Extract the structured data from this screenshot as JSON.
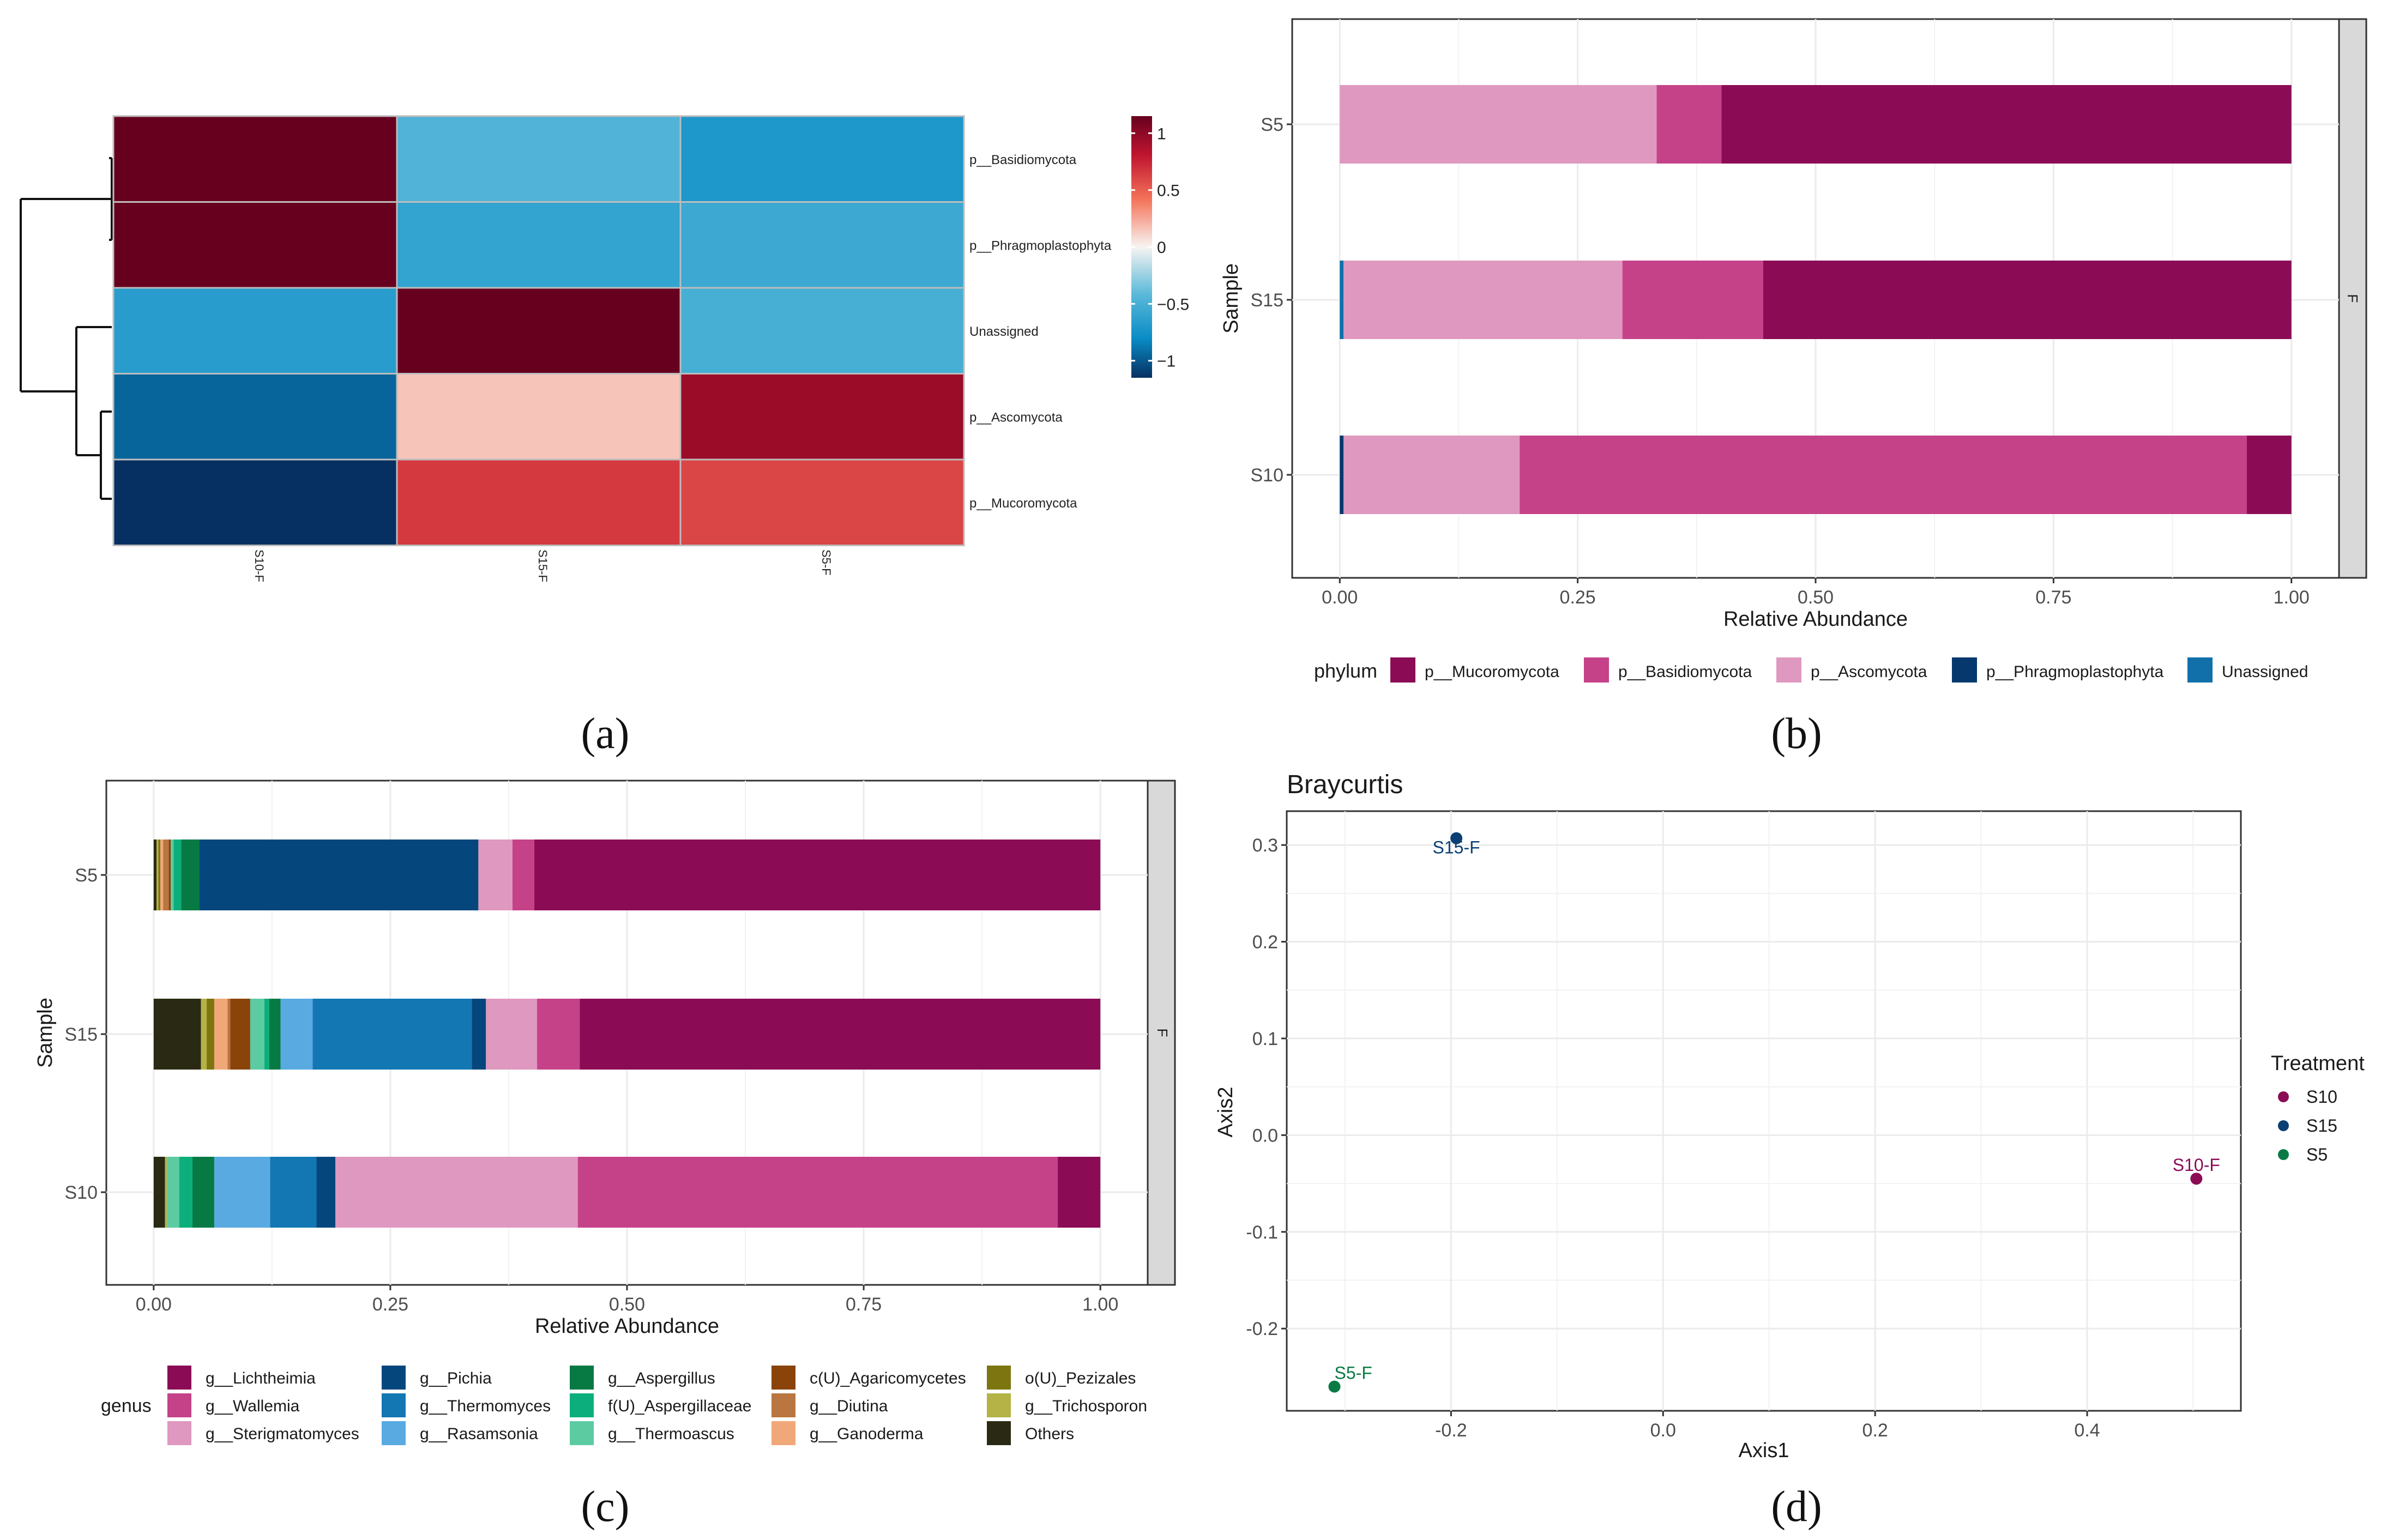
{
  "panel_labels": [
    "(a)",
    "(b)",
    "(c)",
    "(d)"
  ],
  "chart_data": [
    {
      "id": "a",
      "type": "heatmap",
      "columns": [
        "S10-F",
        "S15-F",
        "S5-F"
      ],
      "rows": [
        "p__Basidiomycota",
        "p__Phragmoplastophyta",
        "Unassigned",
        "p__Ascomycota",
        "p__Mucoromycota"
      ],
      "values": [
        [
          1.15,
          -0.45,
          -0.7
        ],
        [
          1.15,
          -0.6,
          -0.55
        ],
        [
          -0.65,
          1.15,
          -0.5
        ],
        [
          -0.95,
          0.15,
          0.95
        ],
        [
          -1.15,
          0.65,
          0.6
        ]
      ],
      "colorbar": {
        "ticks": [
          1,
          0.5,
          0,
          -0.5,
          -1
        ],
        "tick_labels": [
          "1",
          "0.5",
          "0",
          "−0.5",
          "−1"
        ],
        "range": [
          -1.15,
          1.15
        ]
      }
    },
    {
      "id": "b",
      "type": "bar",
      "orientation": "horizontal",
      "stacked": true,
      "categories": [
        "S5",
        "S15",
        "S10"
      ],
      "series": [
        {
          "name": "Unassigned",
          "color": "#1170aa",
          "values": [
            0.0,
            0.004,
            0.0
          ]
        },
        {
          "name": "p__Phragmoplastophyta",
          "color": "#06386e",
          "values": [
            0.0,
            0.0,
            0.004
          ]
        },
        {
          "name": "p__Ascomycota",
          "color": "#df98bf",
          "values": [
            0.333,
            0.293,
            0.185
          ]
        },
        {
          "name": "p__Basidiomycota",
          "color": "#c54289",
          "values": [
            0.068,
            0.148,
            0.764
          ]
        },
        {
          "name": "p__Mucoromycota",
          "color": "#8b0c55",
          "values": [
            0.599,
            0.555,
            0.047
          ]
        }
      ],
      "legend_order": [
        "p__Mucoromycota",
        "p__Basidiomycota",
        "p__Ascomycota",
        "p__Phragmoplastophyta",
        "Unassigned"
      ],
      "legend_title": "phylum",
      "xlabel": "Relative Abundance",
      "ylabel": "Sample",
      "xlim": [
        -0.05,
        1.05
      ],
      "xticks": [
        0,
        0.25,
        0.5,
        0.75,
        1
      ],
      "xtick_labels": [
        "0.00",
        "0.25",
        "0.50",
        "0.75",
        "1.00"
      ],
      "facet_label": "F"
    },
    {
      "id": "c",
      "type": "bar",
      "orientation": "horizontal",
      "stacked": true,
      "categories": [
        "S5",
        "S15",
        "S10"
      ],
      "series": [
        {
          "name": "Others",
          "color": "#2a2a14",
          "values": [
            0.003,
            0.05,
            0.012
          ]
        },
        {
          "name": "g__Trichosporon",
          "color": "#b5b345",
          "values": [
            0.002,
            0.006,
            0.002
          ]
        },
        {
          "name": "o(U)_Pezizales",
          "color": "#7d7610",
          "values": [
            0.002,
            0.008,
            0.0
          ]
        },
        {
          "name": "g__Ganoderma",
          "color": "#f0a878",
          "values": [
            0.003,
            0.014,
            0.0
          ]
        },
        {
          "name": "g__Diutina",
          "color": "#b97640",
          "values": [
            0.006,
            0.003,
            0.0
          ]
        },
        {
          "name": "c(U)_Agaricomycetes",
          "color": "#8a4309",
          "values": [
            0.002,
            0.021,
            0.0
          ]
        },
        {
          "name": "g__Thermoascus",
          "color": "#5ccba1",
          "values": [
            0.003,
            0.015,
            0.013
          ]
        },
        {
          "name": "f(U)_Aspergillaceae",
          "color": "#0caf7c",
          "values": [
            0.008,
            0.005,
            0.014
          ]
        },
        {
          "name": "g__Aspergillus",
          "color": "#077a44",
          "values": [
            0.019,
            0.012,
            0.023
          ]
        },
        {
          "name": "g__Rasamsonia",
          "color": "#58aae1",
          "values": [
            0.0,
            0.034,
            0.059
          ]
        },
        {
          "name": "g__Thermomyces",
          "color": "#1277b3",
          "values": [
            0.0,
            0.168,
            0.049
          ]
        },
        {
          "name": "g__Pichia",
          "color": "#05477d",
          "values": [
            0.295,
            0.015,
            0.02
          ]
        },
        {
          "name": "g__Sterigmatomyces",
          "color": "#df98bf",
          "values": [
            0.036,
            0.054,
            0.256
          ]
        },
        {
          "name": "g__Wallemia",
          "color": "#c54289",
          "values": [
            0.023,
            0.045,
            0.507
          ]
        },
        {
          "name": "g__Lichtheimia",
          "color": "#8b0c55",
          "values": [
            0.598,
            0.55,
            0.045
          ]
        }
      ],
      "legend_order": [
        "g__Lichtheimia",
        "g__Wallemia",
        "g__Sterigmatomyces",
        "g__Pichia",
        "g__Thermomyces",
        "g__Rasamsonia",
        "g__Aspergillus",
        "f(U)_Aspergillaceae",
        "g__Thermoascus",
        "c(U)_Agaricomycetes",
        "g__Diutina",
        "g__Ganoderma",
        "o(U)_Pezizales",
        "g__Trichosporon",
        "Others"
      ],
      "legend_title": "genus",
      "xlabel": "Relative Abundance",
      "ylabel": "Sample",
      "xlim": [
        -0.05,
        1.05
      ],
      "xticks": [
        0,
        0.25,
        0.5,
        0.75,
        1
      ],
      "xtick_labels": [
        "0.00",
        "0.25",
        "0.50",
        "0.75",
        "1.00"
      ],
      "facet_label": "F"
    },
    {
      "id": "d",
      "type": "scatter",
      "title": "Braycurtis",
      "xlabel": "Axis1",
      "ylabel": "Axis2",
      "xlim": [
        -0.355,
        0.545
      ],
      "ylim": [
        -0.285,
        0.335
      ],
      "xticks": [
        -0.2,
        0,
        0.2,
        0.4
      ],
      "xtick_labels": [
        "-0.2",
        "0.0",
        "0.2",
        "0.4"
      ],
      "yticks": [
        -0.2,
        -0.1,
        0,
        0.1,
        0.2,
        0.3
      ],
      "ytick_labels": [
        "-0.2",
        "-0.1",
        "0.0",
        "0.1",
        "0.2",
        "0.3"
      ],
      "points": [
        {
          "label": "S10-F",
          "group": "S10",
          "x": 0.503,
          "y": -0.045
        },
        {
          "label": "S15-F",
          "group": "S15",
          "x": -0.195,
          "y": 0.307
        },
        {
          "label": "S5-F",
          "group": "S5",
          "x": -0.31,
          "y": -0.26
        }
      ],
      "legend_title": "Treatment",
      "groups": [
        {
          "name": "S10",
          "color": "#8b0c55"
        },
        {
          "name": "S15",
          "color": "#0b3f73"
        },
        {
          "name": "S5",
          "color": "#0a7a45"
        }
      ]
    }
  ]
}
